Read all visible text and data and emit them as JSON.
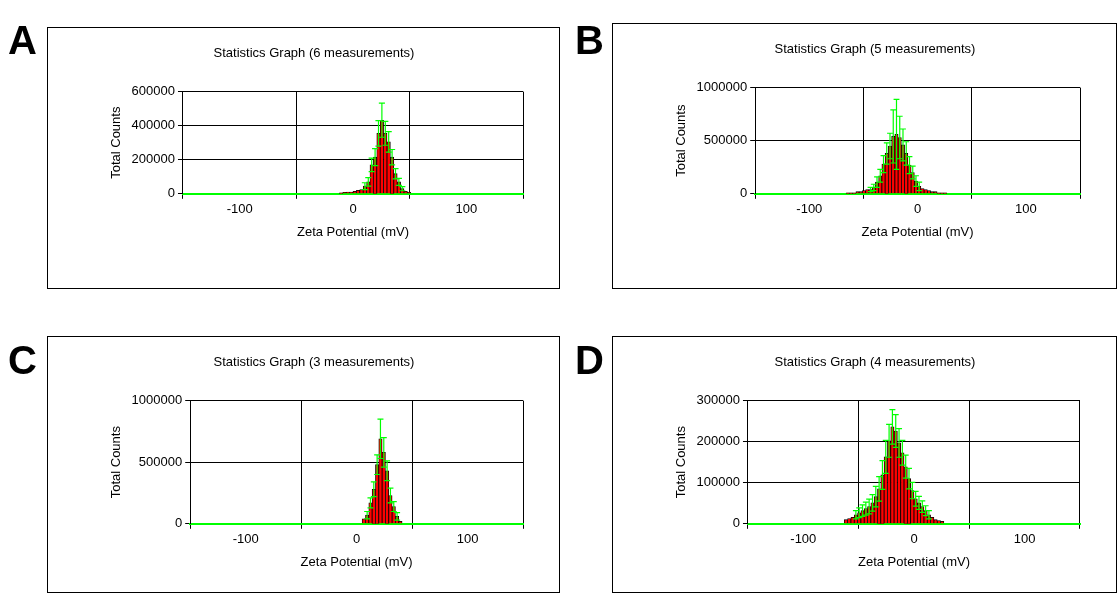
{
  "chart_data": [
    {
      "type": "histogram",
      "title": "Statistics Graph (6 measurements)",
      "xlabel": "Zeta Potential (mV)",
      "ylabel": "Total Counts",
      "annotations": [
        "A"
      ],
      "color": "#ff0000",
      "grid": true,
      "xlim": [
        -150,
        150
      ],
      "xticks": [
        -100,
        0,
        100
      ],
      "ylim": [
        0,
        600000
      ],
      "yticks": [
        0,
        200000,
        400000,
        600000
      ],
      "bins": [
        -12,
        -9,
        -6,
        -3,
        0,
        3,
        6,
        9,
        12,
        15,
        18,
        21,
        24,
        27,
        30,
        33,
        36,
        39,
        42,
        45,
        48,
        51
      ],
      "values": [
        5000,
        8000,
        10000,
        10000,
        15000,
        20000,
        25000,
        45000,
        70000,
        170000,
        215000,
        355000,
        432000,
        355000,
        305000,
        215000,
        118000,
        70000,
        30000,
        15000,
        8000
      ],
      "errors": [
        null,
        null,
        null,
        null,
        null,
        null,
        null,
        20000,
        25000,
        40000,
        50000,
        75000,
        100000,
        70000,
        60000,
        45000,
        30000,
        20000,
        12000,
        null,
        null
      ]
    },
    {
      "type": "histogram",
      "title": "Statistics Graph (5 measurements)",
      "xlabel": "Zeta Potential (mV)",
      "ylabel": "Total Counts",
      "annotations": [
        "B"
      ],
      "color": "#ff0000",
      "grid": true,
      "xlim": [
        -150,
        150
      ],
      "xticks": [
        -100,
        0,
        100
      ],
      "ylim": [
        0,
        1000000
      ],
      "yticks": [
        0,
        500000,
        1000000
      ],
      "bins": [
        -66,
        -63,
        -60,
        -57,
        -54,
        -51,
        -48,
        -45,
        -42,
        -39,
        -36,
        -33,
        -30,
        -27,
        -24,
        -21,
        -18,
        -15,
        -12,
        -9,
        -6,
        -3,
        0,
        3,
        6,
        9,
        12,
        15,
        18,
        21,
        24,
        27
      ],
      "values": [
        10000,
        10000,
        10000,
        20000,
        20000,
        30000,
        40000,
        40000,
        60000,
        110000,
        170000,
        280000,
        380000,
        450000,
        540000,
        560000,
        530000,
        460000,
        380000,
        270000,
        200000,
        120000,
        70000,
        50000,
        40000,
        30000,
        20000,
        20000,
        10000,
        10000,
        10000
      ],
      "errors": [
        null,
        null,
        null,
        null,
        null,
        null,
        null,
        20000,
        30000,
        50000,
        60000,
        80000,
        100000,
        120000,
        250000,
        330000,
        200000,
        150000,
        110000,
        80000,
        60000,
        50000,
        40000,
        null,
        null,
        null,
        null,
        null,
        null,
        null,
        null
      ]
    },
    {
      "type": "histogram",
      "title": "Statistics Graph (3 measurements)",
      "xlabel": "Zeta Potential (mV)",
      "ylabel": "Total Counts",
      "annotations": [
        "C"
      ],
      "color": "#ff0000",
      "grid": true,
      "xlim": [
        -150,
        150
      ],
      "xticks": [
        -100,
        0,
        100
      ],
      "ylim": [
        0,
        1000000
      ],
      "yticks": [
        0,
        500000,
        1000000
      ],
      "bins": [
        5,
        8,
        11,
        14,
        17,
        20,
        23,
        26,
        29,
        32,
        35,
        38,
        41
      ],
      "values": [
        40000,
        70000,
        170000,
        280000,
        480000,
        690000,
        580000,
        430000,
        230000,
        140000,
        60000,
        20000
      ],
      "errors": [
        null,
        30000,
        40000,
        60000,
        80000,
        160000,
        120000,
        80000,
        60000,
        40000,
        30000,
        null
      ]
    },
    {
      "type": "histogram",
      "title": "Statistics Graph (4 measurements)",
      "xlabel": "Zeta Potential (mV)",
      "ylabel": "Total Counts",
      "annotations": [
        "D"
      ],
      "color": "#ff0000",
      "grid": true,
      "xlim": [
        -150,
        150
      ],
      "xticks": [
        -100,
        0,
        100
      ],
      "ylim": [
        0,
        300000
      ],
      "yticks": [
        0,
        100000,
        200000,
        300000
      ],
      "bins": [
        -63,
        -60,
        -57,
        -54,
        -51,
        -48,
        -45,
        -42,
        -39,
        -36,
        -33,
        -30,
        -27,
        -24,
        -21,
        -18,
        -15,
        -12,
        -9,
        -6,
        -3,
        0,
        3,
        6,
        9,
        12,
        15,
        18,
        21,
        24,
        27
      ],
      "values": [
        10000,
        13000,
        16000,
        22000,
        27000,
        32000,
        37000,
        42000,
        51000,
        66000,
        85000,
        119000,
        163000,
        202000,
        236000,
        226000,
        197000,
        173000,
        139000,
        110000,
        81000,
        61000,
        51000,
        42000,
        32000,
        22000,
        16000,
        10000,
        8000,
        6000
      ],
      "errors": [
        null,
        null,
        null,
        10000,
        12000,
        14000,
        16000,
        18000,
        20000,
        25000,
        30000,
        35000,
        40000,
        40000,
        42000,
        40000,
        35000,
        30000,
        28000,
        25000,
        20000,
        18000,
        16000,
        14000,
        12000,
        10000,
        null,
        null,
        null,
        null
      ]
    }
  ]
}
